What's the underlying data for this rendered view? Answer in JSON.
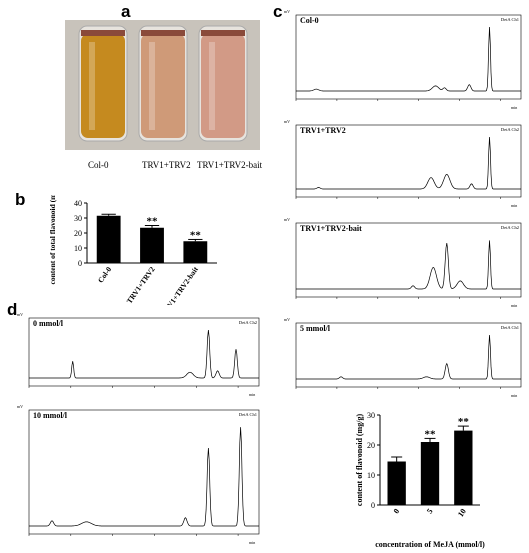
{
  "panel_labels": {
    "a": "a",
    "b": "b",
    "c": "c",
    "d": "d"
  },
  "tubes": {
    "labels": [
      "Col-0",
      "TRV1+TRV2",
      "TRV1+TRV2-bait"
    ],
    "colors": [
      "#c58a1f",
      "#cf9a78",
      "#d29a86"
    ]
  },
  "chromatograms_c": [
    {
      "title": "Col-0",
      "channel": "DetA Ch1"
    },
    {
      "title": "TRV1+TRV2",
      "channel": "DetA Ch2"
    },
    {
      "title": "TRV1+TRV2-bait",
      "channel": "DetA Ch2"
    },
    {
      "title": "5 mmol/l",
      "channel": "DetA Ch1"
    }
  ],
  "chromatograms_d": [
    {
      "title": "0 mmol/l",
      "channel": "DetA Ch2"
    },
    {
      "title": "10 mmol/l",
      "channel": "DetA Ch1"
    }
  ],
  "axis_units": {
    "y": "mV",
    "x": "min"
  },
  "chrom_d_axis": {
    "top_yticks": [
      "80",
      "60",
      "40",
      "20",
      "0"
    ],
    "bottom_yticks": [
      "200",
      "150",
      "100",
      "50",
      "0"
    ],
    "xticks": [
      "0",
      "5",
      "10",
      "15",
      "20",
      "25"
    ]
  },
  "chart_data": [
    {
      "type": "bar",
      "categories": [
        "Col-0",
        "TRV1+TRV2",
        "TRV1+TRV2-bait"
      ],
      "values": [
        31.5,
        23.5,
        14.5
      ],
      "errors": [
        1.0,
        1.5,
        1.2
      ],
      "significance": [
        "",
        "**",
        "**"
      ],
      "ylabel": "content of total flavonoid (mg/g)",
      "xlabel": "",
      "ylim": [
        0,
        40
      ],
      "yticks": [
        0,
        10,
        20,
        30,
        40
      ]
    },
    {
      "type": "bar",
      "categories": [
        "0",
        "5",
        "10"
      ],
      "values": [
        14.5,
        21,
        24.8
      ],
      "errors": [
        1.5,
        1.2,
        1.5
      ],
      "significance": [
        "",
        "**",
        "**"
      ],
      "ylabel": "content of flavonoid (mg/g)",
      "xlabel": "concentration of MeJA (mmol/l)",
      "ylim": [
        0,
        30
      ],
      "yticks": [
        0,
        10,
        20,
        30
      ]
    }
  ]
}
